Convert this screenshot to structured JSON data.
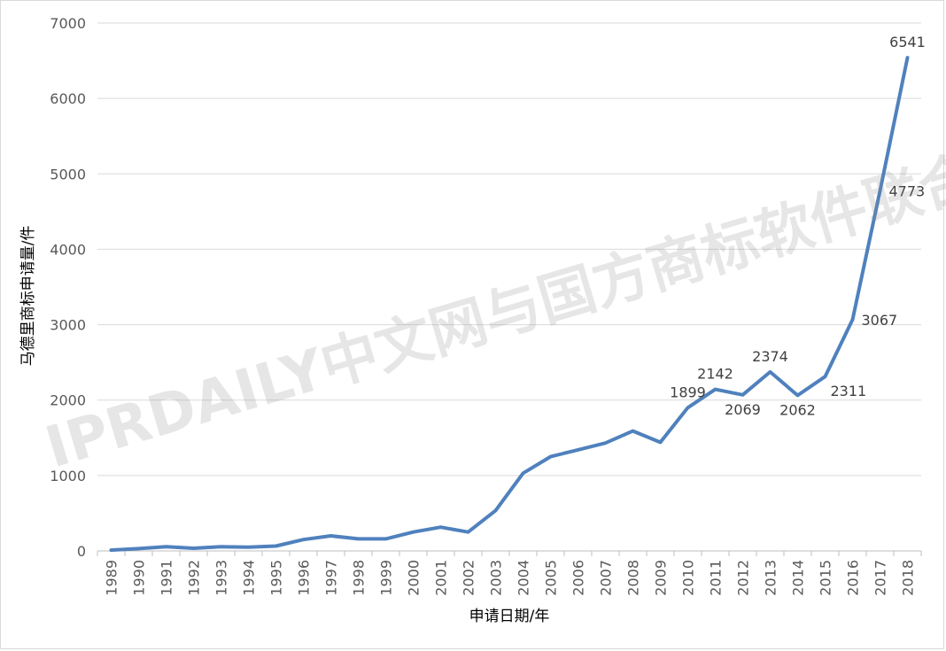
{
  "chart_data": {
    "type": "line",
    "xlabel": "申请日期/年",
    "ylabel": "马德里商标申请量/件",
    "ylim": [
      0,
      7000
    ],
    "yticks": [
      0,
      1000,
      2000,
      3000,
      4000,
      5000,
      6000,
      7000
    ],
    "grid": true,
    "legend": "none",
    "categories": [
      "1989",
      "1990",
      "1991",
      "1992",
      "1993",
      "1994",
      "1995",
      "1996",
      "1997",
      "1998",
      "1999",
      "2000",
      "2001",
      "2002",
      "2003",
      "2004",
      "2005",
      "2006",
      "2007",
      "2008",
      "2009",
      "2010",
      "2011",
      "2012",
      "2013",
      "2014",
      "2015",
      "2016",
      "2017",
      "2018"
    ],
    "series": [
      {
        "values": [
          10,
          30,
          55,
          35,
          55,
          50,
          65,
          150,
          200,
          160,
          160,
          250,
          315,
          250,
          535,
          1030,
          1250,
          1340,
          1430,
          1590,
          1440,
          1899,
          2142,
          2069,
          2374,
          2062,
          2311,
          3067,
          4773,
          6541
        ],
        "color": "#4f81bd"
      }
    ],
    "data_labels": [
      {
        "category": "2010",
        "text": "1899",
        "position": "above"
      },
      {
        "category": "2011",
        "text": "2142",
        "position": "above"
      },
      {
        "category": "2012",
        "text": "2069",
        "position": "below"
      },
      {
        "category": "2013",
        "text": "2374",
        "position": "above"
      },
      {
        "category": "2014",
        "text": "2062",
        "position": "below"
      },
      {
        "category": "2015",
        "text": "2311",
        "position": "below-right"
      },
      {
        "category": "2016",
        "text": "3067",
        "position": "right"
      },
      {
        "category": "2017",
        "text": "4773",
        "position": "right"
      },
      {
        "category": "2018",
        "text": "6541",
        "position": "above"
      }
    ]
  },
  "watermark": "IPRDAILY中文网与国方商标软件联合发布"
}
